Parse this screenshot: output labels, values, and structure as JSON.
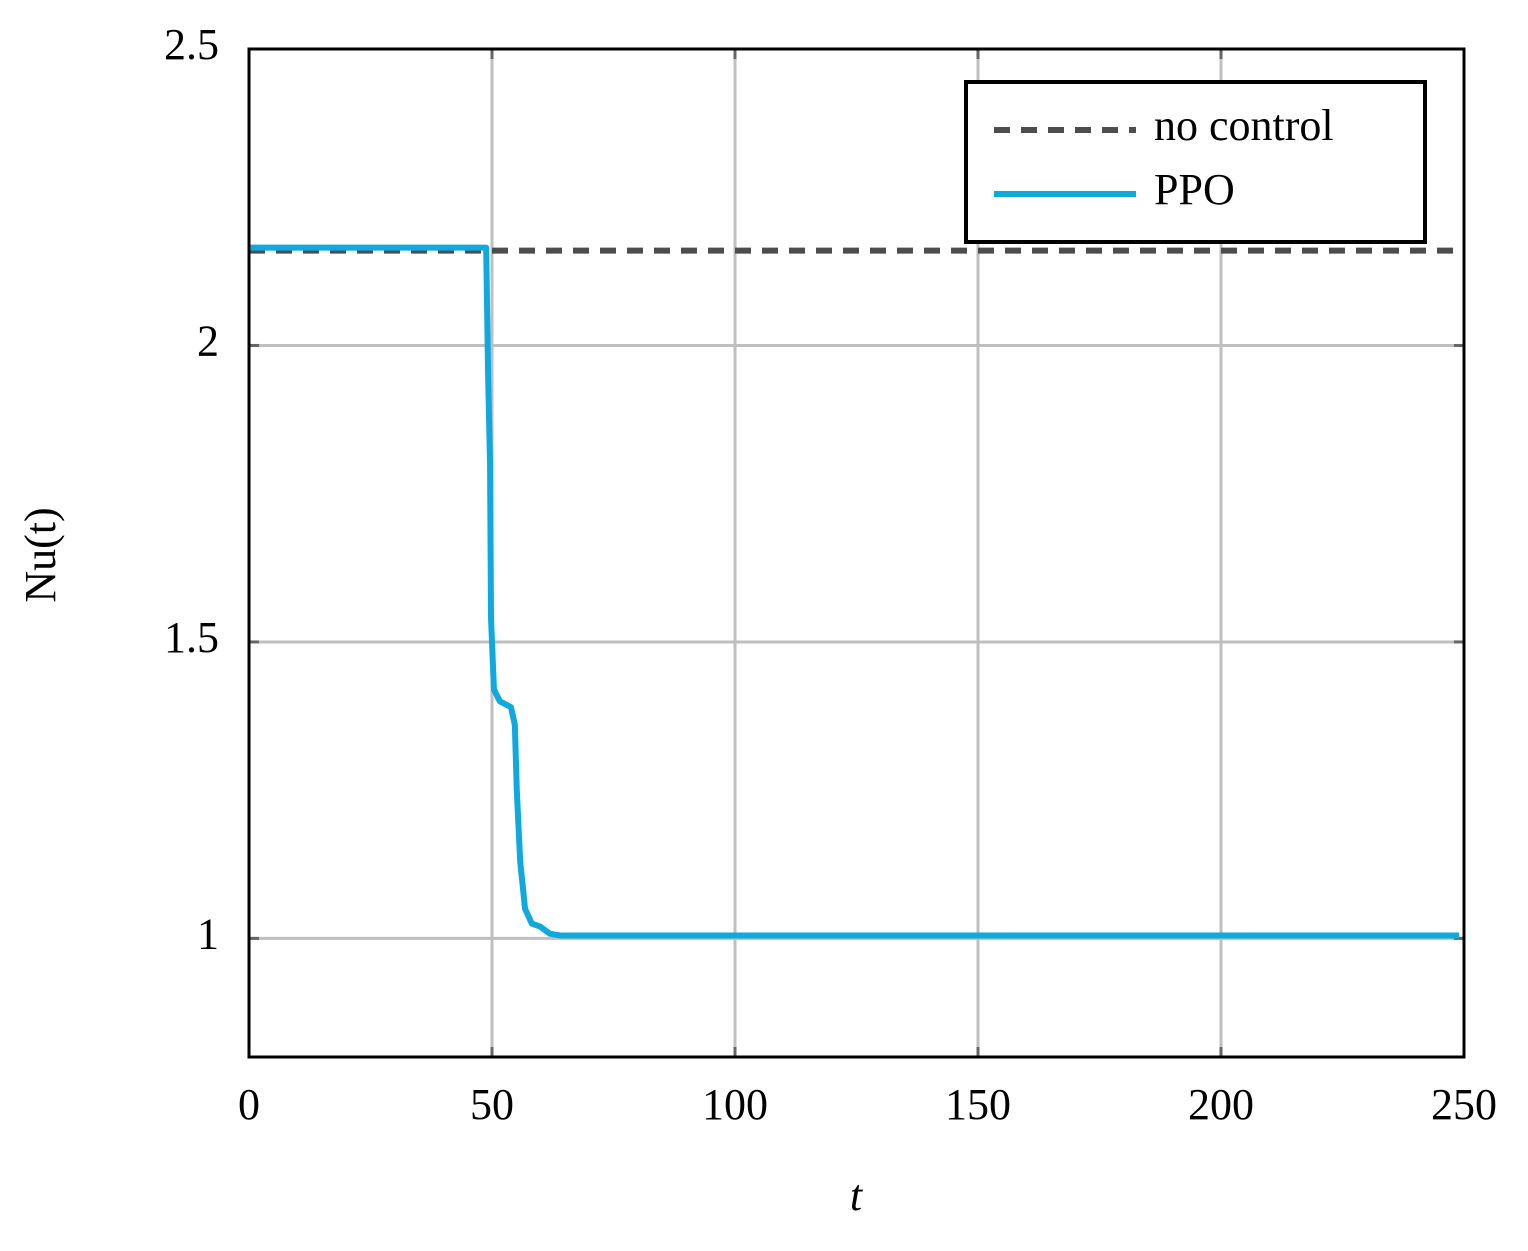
{
  "chart_data": {
    "type": "line",
    "xlabel": "t",
    "ylabel": "Nu(t)",
    "xlim": [
      0,
      250
    ],
    "ylim": [
      0.8,
      2.5
    ],
    "xticks": [
      0,
      50,
      100,
      150,
      200,
      250
    ],
    "yticks": [
      1,
      1.5,
      2,
      2.5
    ],
    "grid": true,
    "legend": "upper right",
    "series": [
      {
        "name": "no control",
        "color": "#4d4d4d",
        "style": "dashed",
        "x": [
          0,
          250
        ],
        "values": [
          2.16,
          2.16
        ]
      },
      {
        "name": "PPO",
        "color": "#0fa9e0",
        "style": "solid",
        "x": [
          0,
          48.8,
          49.2,
          49.6,
          49.8,
          50.4,
          51.6,
          53.9,
          54.7,
          55.1,
          55.8,
          56.8,
          58.2,
          59.9,
          61.9,
          64,
          249
        ],
        "values": [
          2.165,
          2.165,
          1.95,
          1.8,
          1.54,
          1.42,
          1.4,
          1.39,
          1.36,
          1.25,
          1.13,
          1.05,
          1.025,
          1.02,
          1.008,
          1.005,
          1.005
        ]
      }
    ]
  }
}
